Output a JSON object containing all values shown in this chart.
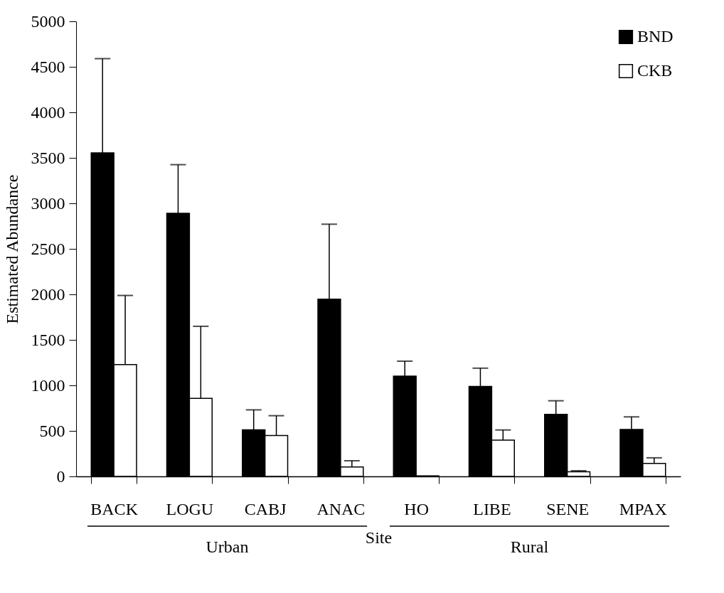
{
  "chart_data": {
    "type": "bar",
    "xlabel": "Site",
    "ylabel": "Estimated Abundance",
    "categories": [
      "BACK",
      "LOGU",
      "CABJ",
      "ANAC",
      "HO",
      "LIBE",
      "SENE",
      "MPAX"
    ],
    "series": [
      {
        "name": "BND",
        "color": "#000000",
        "values": [
          3555,
          2890,
          512,
          1948,
          1102,
          988,
          682,
          515
        ],
        "errors": [
          [
            3555,
            4590
          ],
          [
            2890,
            3425
          ],
          [
            512,
            731
          ],
          [
            1948,
            2771
          ],
          [
            1102,
            1266
          ],
          [
            988,
            1189
          ],
          [
            682,
            831
          ],
          [
            515,
            654
          ]
        ]
      },
      {
        "name": "CKB",
        "color": "#ffffff",
        "values": [
          1229,
          858,
          450,
          104,
          5,
          398,
          50,
          142
        ],
        "errors": [
          [
            1229,
            1988
          ],
          [
            858,
            1649
          ],
          [
            450,
            667
          ],
          [
            104,
            172
          ],
          null,
          [
            398,
            510
          ],
          [
            50,
            62
          ],
          [
            142,
            204
          ]
        ]
      }
    ],
    "ylim": [
      0,
      5000
    ],
    "yticks": [
      0,
      500,
      1000,
      1500,
      2000,
      2500,
      3000,
      3500,
      4000,
      4500,
      5000
    ],
    "grid": false,
    "legend": "top right",
    "annotations": [
      "Urban",
      "Rural"
    ]
  }
}
